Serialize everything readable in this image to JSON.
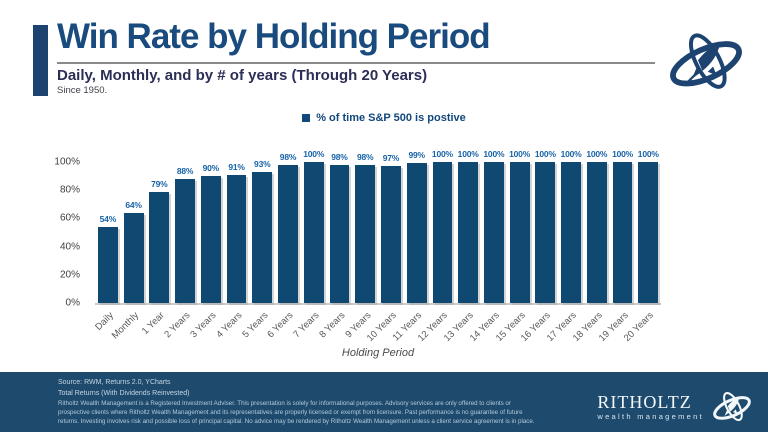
{
  "header": {
    "title": "Win Rate by Holding Period",
    "subtitle": "Daily, Monthly, and by # of years (Through 20 Years)",
    "since": "Since 1950."
  },
  "legend": {
    "label": "% of time S&P 500 is postive"
  },
  "chart_data": {
    "type": "bar",
    "title": "Win Rate by Holding Period",
    "subtitle": "Daily, Monthly, and by # of years (Through 20 Years), Since 1950",
    "series_label": "% of time S&P 500 is postive",
    "categories": [
      "Daily",
      "Monthly",
      "1 Year",
      "2 Years",
      "3 Years",
      "4 Years",
      "5 Years",
      "6 Years",
      "7 Years",
      "8 Years",
      "9 Years",
      "10 Years",
      "11 Years",
      "12 Years",
      "13 Years",
      "14 Years",
      "15 Years",
      "16 Years",
      "17 Years",
      "18 Years",
      "19 Years",
      "20 Years"
    ],
    "values": [
      54,
      64,
      79,
      88,
      90,
      91,
      93,
      98,
      100,
      98,
      98,
      97,
      99,
      100,
      100,
      100,
      100,
      100,
      100,
      100,
      100,
      100
    ],
    "xlabel": "Holding Period",
    "ylabel": "",
    "ylim": [
      0,
      100
    ],
    "yticks": [
      0,
      20,
      40,
      60,
      80,
      100
    ],
    "ytick_suffix": "%",
    "value_label_suffix": "%",
    "grid": false,
    "legend_position": "top"
  },
  "footer": {
    "source_line1": "Source: RWM, Returns 2.0, YCharts",
    "source_line2": "Total Returns (With Dividends Reinvested)",
    "disclaimer": "Ritholtz Wealth Management is a Registered Investment Adviser. This presentation is solely for informational purposes. Advisory services are only offered to clients or prospective clients where Ritholtz Wealth Management and its representatives are properly licensed or exempt from licensure. Past performance is no guarantee of future returns. Investing involves risk and possible loss of principal capital. No advice may be rendered by Ritholtz Wealth Management unless a client service agreement is in place.",
    "brand_name": "RITHOLTZ",
    "brand_tagline": "wealth management"
  },
  "colors": {
    "bar": "#0F4870",
    "accent_bar": "#1D4470",
    "title": "#1A4B7E",
    "subtitle": "#2B2E55",
    "legend": "#11477D",
    "value_label": "#1763A8",
    "footer_bg": "#1D4A6D",
    "footer_text": "#C6D6E4"
  }
}
